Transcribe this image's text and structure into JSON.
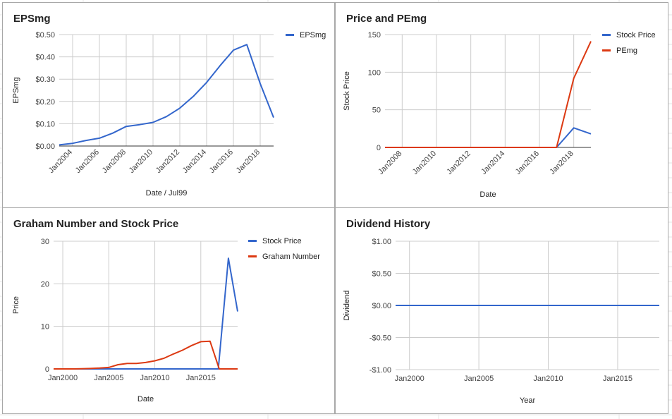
{
  "colors": {
    "blue": "#3366cc",
    "red": "#dc3912",
    "grid": "#cccccc",
    "axis": "#333333"
  },
  "panels": [
    {
      "title": "EPSmg",
      "xlabel": "Date / Jul99",
      "ylabel": "EPSmg",
      "chart_data": {
        "type": "line",
        "title": "EPSmg",
        "xlabel": "Date / Jul99",
        "ylabel": "EPSmg",
        "xlim": [
          2003,
          2019
        ],
        "ylim": [
          0,
          0.5
        ],
        "x_ticks": [
          2004,
          2006,
          2008,
          2010,
          2012,
          2014,
          2016,
          2018
        ],
        "x_tick_labels": [
          "Jan2004",
          "Jan2006",
          "Jan2008",
          "Jan2010",
          "Jan2012",
          "Jan2014",
          "Jan2016",
          "Jan2018"
        ],
        "y_ticks": [
          0,
          0.1,
          0.2,
          0.3,
          0.4,
          0.5
        ],
        "y_tick_labels": [
          "$0.00",
          "$0.10",
          "$0.20",
          "$0.30",
          "$0.40",
          "$0.50"
        ],
        "x_tick_rotation": "diagonal",
        "grid": true,
        "legend": "top-right",
        "series": [
          {
            "name": "EPSmg",
            "color": "#3366cc",
            "x": [
              2003,
              2004,
              2005,
              2006,
              2007,
              2008,
              2009,
              2010,
              2011,
              2012,
              2013,
              2014,
              2015,
              2016,
              2017,
              2018,
              2019
            ],
            "y": [
              0.005,
              0.012,
              0.025,
              0.035,
              0.058,
              0.088,
              0.096,
              0.106,
              0.132,
              0.17,
              0.222,
              0.285,
              0.36,
              0.43,
              0.455,
              0.28,
              0.128
            ]
          }
        ]
      }
    },
    {
      "title": "Price and PEmg",
      "xlabel": "Date",
      "ylabel": "Stock Price",
      "chart_data": {
        "type": "line",
        "title": "Price and PEmg",
        "xlabel": "Date",
        "ylabel": "Stock Price",
        "xlim": [
          2007,
          2019
        ],
        "ylim": [
          0,
          150
        ],
        "x_ticks": [
          2008,
          2010,
          2012,
          2014,
          2016,
          2018
        ],
        "x_tick_labels": [
          "Jan2008",
          "Jan2010",
          "Jan2012",
          "Jan2014",
          "Jan2016",
          "Jan2018"
        ],
        "y_ticks": [
          0,
          50,
          100,
          150
        ],
        "y_tick_labels": [
          "0",
          "50",
          "100",
          "150"
        ],
        "x_tick_rotation": "diagonal",
        "grid": true,
        "legend": "top-right",
        "series": [
          {
            "name": "Stock Price",
            "color": "#3366cc",
            "x": [
              2007,
              2017,
              2018,
              2019
            ],
            "y": [
              0,
              0,
              26,
              18
            ]
          },
          {
            "name": "PEmg",
            "color": "#dc3912",
            "x": [
              2007,
              2017,
              2018,
              2019
            ],
            "y": [
              0,
              0,
              92,
              141
            ]
          }
        ]
      }
    },
    {
      "title": "Graham Number and Stock Price",
      "xlabel": "Date",
      "ylabel": "Price",
      "chart_data": {
        "type": "line",
        "title": "Graham Number and Stock Price",
        "xlabel": "Date",
        "ylabel": "Price",
        "xlim": [
          1999,
          2019
        ],
        "ylim": [
          0,
          30
        ],
        "x_ticks": [
          2000,
          2005,
          2010,
          2015
        ],
        "x_tick_labels": [
          "Jan2000",
          "Jan2005",
          "Jan2010",
          "Jan2015"
        ],
        "y_ticks": [
          0,
          10,
          20,
          30
        ],
        "y_tick_labels": [
          "0",
          "10",
          "20",
          "30"
        ],
        "x_tick_rotation": "none",
        "grid": true,
        "legend": "top-right",
        "series": [
          {
            "name": "Stock Price",
            "color": "#3366cc",
            "x": [
              1999,
              2016.9,
              2018,
              2019
            ],
            "y": [
              0,
              0,
              26,
              13.5
            ]
          },
          {
            "name": "Graham Number",
            "color": "#dc3912",
            "x": [
              1999,
              2001,
              2002,
              2003,
              2004,
              2005,
              2006,
              2007,
              2008,
              2009,
              2010,
              2011,
              2012,
              2013,
              2014,
              2015,
              2016,
              2017,
              2018,
              2019
            ],
            "y": [
              0,
              0,
              0.05,
              0.1,
              0.2,
              0.35,
              1.0,
              1.3,
              1.3,
              1.5,
              1.9,
              2.5,
              3.5,
              4.4,
              5.5,
              6.4,
              6.5,
              0,
              0,
              0
            ]
          }
        ]
      }
    },
    {
      "title": "Dividend History",
      "xlabel": "Year",
      "ylabel": "Dividend",
      "chart_data": {
        "type": "line",
        "title": "Dividend History",
        "xlabel": "Year",
        "ylabel": "Dividend",
        "xlim": [
          1999,
          2018
        ],
        "ylim": [
          -1,
          1
        ],
        "x_ticks": [
          2000,
          2005,
          2010,
          2015
        ],
        "x_tick_labels": [
          "Jan2000",
          "Jan2005",
          "Jan2010",
          "Jan2015"
        ],
        "y_ticks": [
          -1,
          -0.5,
          0,
          0.5,
          1
        ],
        "y_tick_labels": [
          "-$1.00",
          "-$0.50",
          "$0.00",
          "$0.50",
          "$1.00"
        ],
        "x_tick_rotation": "none",
        "grid": true,
        "legend": "none",
        "series": [
          {
            "color": "#3366cc",
            "x": [
              1999,
              2018
            ],
            "y": [
              0,
              0
            ]
          }
        ]
      }
    }
  ]
}
